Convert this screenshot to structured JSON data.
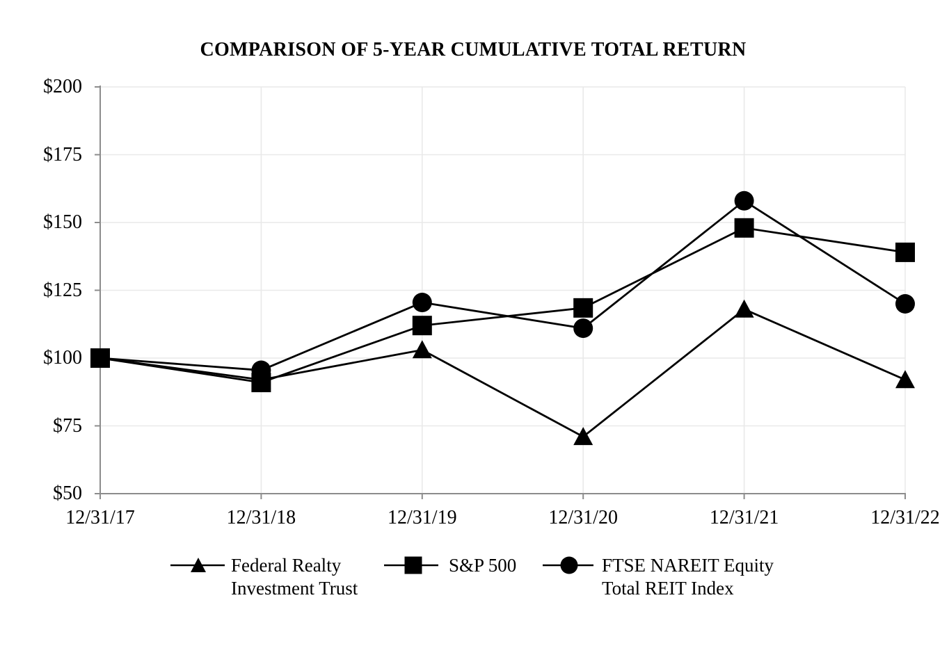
{
  "chart_data": {
    "type": "line",
    "title": "COMPARISON OF 5-YEAR CUMULATIVE TOTAL RETURN",
    "categories": [
      "12/31/17",
      "12/31/18",
      "12/31/19",
      "12/31/20",
      "12/31/21",
      "12/31/22"
    ],
    "series": [
      {
        "name": "Federal Realty Investment Trust",
        "legend_lines": [
          "Federal Realty",
          "Investment Trust"
        ],
        "marker": "triangle",
        "values": [
          100,
          92,
          103,
          71,
          118,
          92
        ]
      },
      {
        "name": "S&P 500",
        "legend_lines": [
          "S&P 500"
        ],
        "marker": "square",
        "values": [
          100,
          91,
          112,
          118.5,
          148,
          139
        ]
      },
      {
        "name": "FTSE NAREIT Equity Total REIT Index",
        "legend_lines": [
          "FTSE NAREIT Equity",
          "Total REIT Index"
        ],
        "marker": "circle",
        "values": [
          100,
          95.5,
          120.5,
          111,
          158,
          120
        ]
      }
    ],
    "y_ticks": [
      {
        "label": "$200",
        "value": 200
      },
      {
        "label": "$175",
        "value": 175
      },
      {
        "label": "$150",
        "value": 150
      },
      {
        "label": "$125",
        "value": 125
      },
      {
        "label": "$100",
        "value": 100
      },
      {
        "label": "$75",
        "value": 75
      },
      {
        "label": "$50",
        "value": 50
      }
    ],
    "ylim": [
      50,
      200
    ],
    "grid": true,
    "legend_position": "bottom",
    "colors": {
      "series": "#000000",
      "axis": "#8c8c8c",
      "grid": "#e9e9e9",
      "text": "#000000",
      "background": "#ffffff"
    }
  }
}
